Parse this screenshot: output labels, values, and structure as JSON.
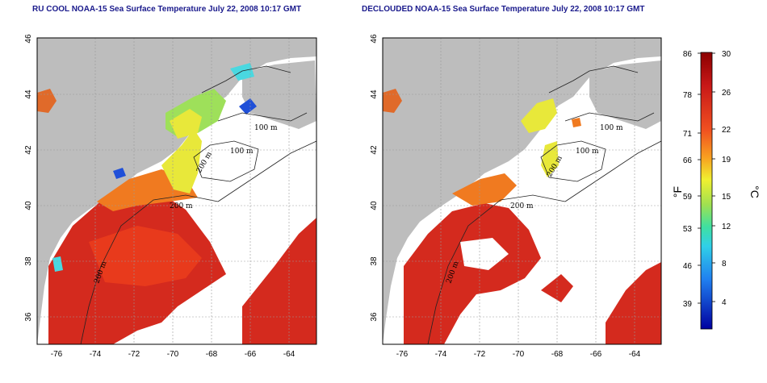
{
  "panels": [
    {
      "title": "RU COOL NOAA-15 Sea Surface Temperature July 22, 2008 10:17 GMT",
      "contour_labels": [
        "100 m",
        "100 m",
        "200 m",
        "200 m",
        "200 m"
      ]
    },
    {
      "title": "DECLOUDED NOAA-15 Sea Surface Temperature July 22, 2008 10:17 GMT",
      "contour_labels": [
        "100 m",
        "100 m",
        "200 m",
        "200 m",
        "200 m"
      ]
    }
  ],
  "map": {
    "lon_ticks": [
      "-76",
      "-74",
      "-72",
      "-70",
      "-68",
      "-66",
      "-64"
    ],
    "lat_ticks": [
      "46",
      "44",
      "42",
      "40",
      "38",
      "36"
    ]
  },
  "colorbar": {
    "fahrenheit_ticks": [
      "86",
      "78",
      "71",
      "66",
      "59",
      "53",
      "46",
      "39"
    ],
    "celsius_ticks": [
      "30",
      "26",
      "22",
      "19",
      "15",
      "12",
      "8",
      "4"
    ],
    "fahrenheit_unit": "°F",
    "celsius_unit": "°C"
  },
  "colors": {
    "land": "#bdbdbd",
    "cloud": "#ffffff",
    "warm": "#d42a1e",
    "hot": "#e83a1c",
    "orange": "#f07a20",
    "yellow": "#e8e83a",
    "green": "#9ee05a",
    "cyan": "#4ad8e0",
    "blue": "#2050d8",
    "title": "#1a1a8c"
  }
}
